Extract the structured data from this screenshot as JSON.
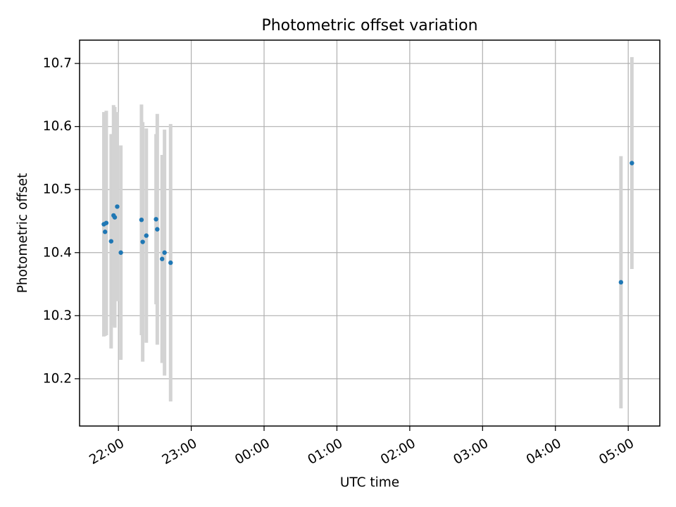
{
  "chart_data": {
    "type": "scatter",
    "title": "Photometric offset variation",
    "xlabel": "UTC time",
    "ylabel": "Photometric offset",
    "x_unit": "UTC time (HH:MM)",
    "xlim": [
      "21:28",
      "05:26"
    ],
    "ylim": [
      10.125,
      10.737
    ],
    "x_ticks": [
      "22:00",
      "23:00",
      "00:00",
      "01:00",
      "02:00",
      "03:00",
      "04:00",
      "05:00"
    ],
    "y_ticks": [
      10.2,
      10.3,
      10.4,
      10.5,
      10.6,
      10.7
    ],
    "y_tick_labels": [
      "10.2",
      "10.3",
      "10.4",
      "10.5",
      "10.6",
      "10.7"
    ],
    "grid": true,
    "legend": "none",
    "colors": {
      "point": "#1f77b4",
      "errorbar": "#d3d3d3",
      "grid": "#b0b0b0"
    },
    "series": [
      {
        "points": [
          {
            "x": "21:48",
            "y": 10.445,
            "yerr": 0.178
          },
          {
            "x": "21:49",
            "y": 10.433,
            "yerr": 0.165
          },
          {
            "x": "21:50",
            "y": 10.447,
            "yerr": 0.178
          },
          {
            "x": "21:54",
            "y": 10.418,
            "yerr": 0.17
          },
          {
            "x": "21:56",
            "y": 10.459,
            "yerr": 0.175
          },
          {
            "x": "21:57",
            "y": 10.456,
            "yerr": 0.175
          },
          {
            "x": "21:59",
            "y": 10.473,
            "yerr": 0.15
          },
          {
            "x": "22:02",
            "y": 10.4,
            "yerr": 0.17
          },
          {
            "x": "22:19",
            "y": 10.452,
            "yerr": 0.183
          },
          {
            "x": "22:20",
            "y": 10.417,
            "yerr": 0.19
          },
          {
            "x": "22:23",
            "y": 10.427,
            "yerr": 0.17
          },
          {
            "x": "22:31",
            "y": 10.453,
            "yerr": 0.135
          },
          {
            "x": "22:32",
            "y": 10.437,
            "yerr": 0.183
          },
          {
            "x": "22:36",
            "y": 10.39,
            "yerr": 0.165
          },
          {
            "x": "22:38",
            "y": 10.4,
            "yerr": 0.195
          },
          {
            "x": "22:43",
            "y": 10.384,
            "yerr": 0.22
          },
          {
            "x": "04:54",
            "y": 10.353,
            "yerr": 0.2
          },
          {
            "x": "05:03",
            "y": 10.542,
            "yerr": 0.168
          }
        ]
      }
    ]
  }
}
